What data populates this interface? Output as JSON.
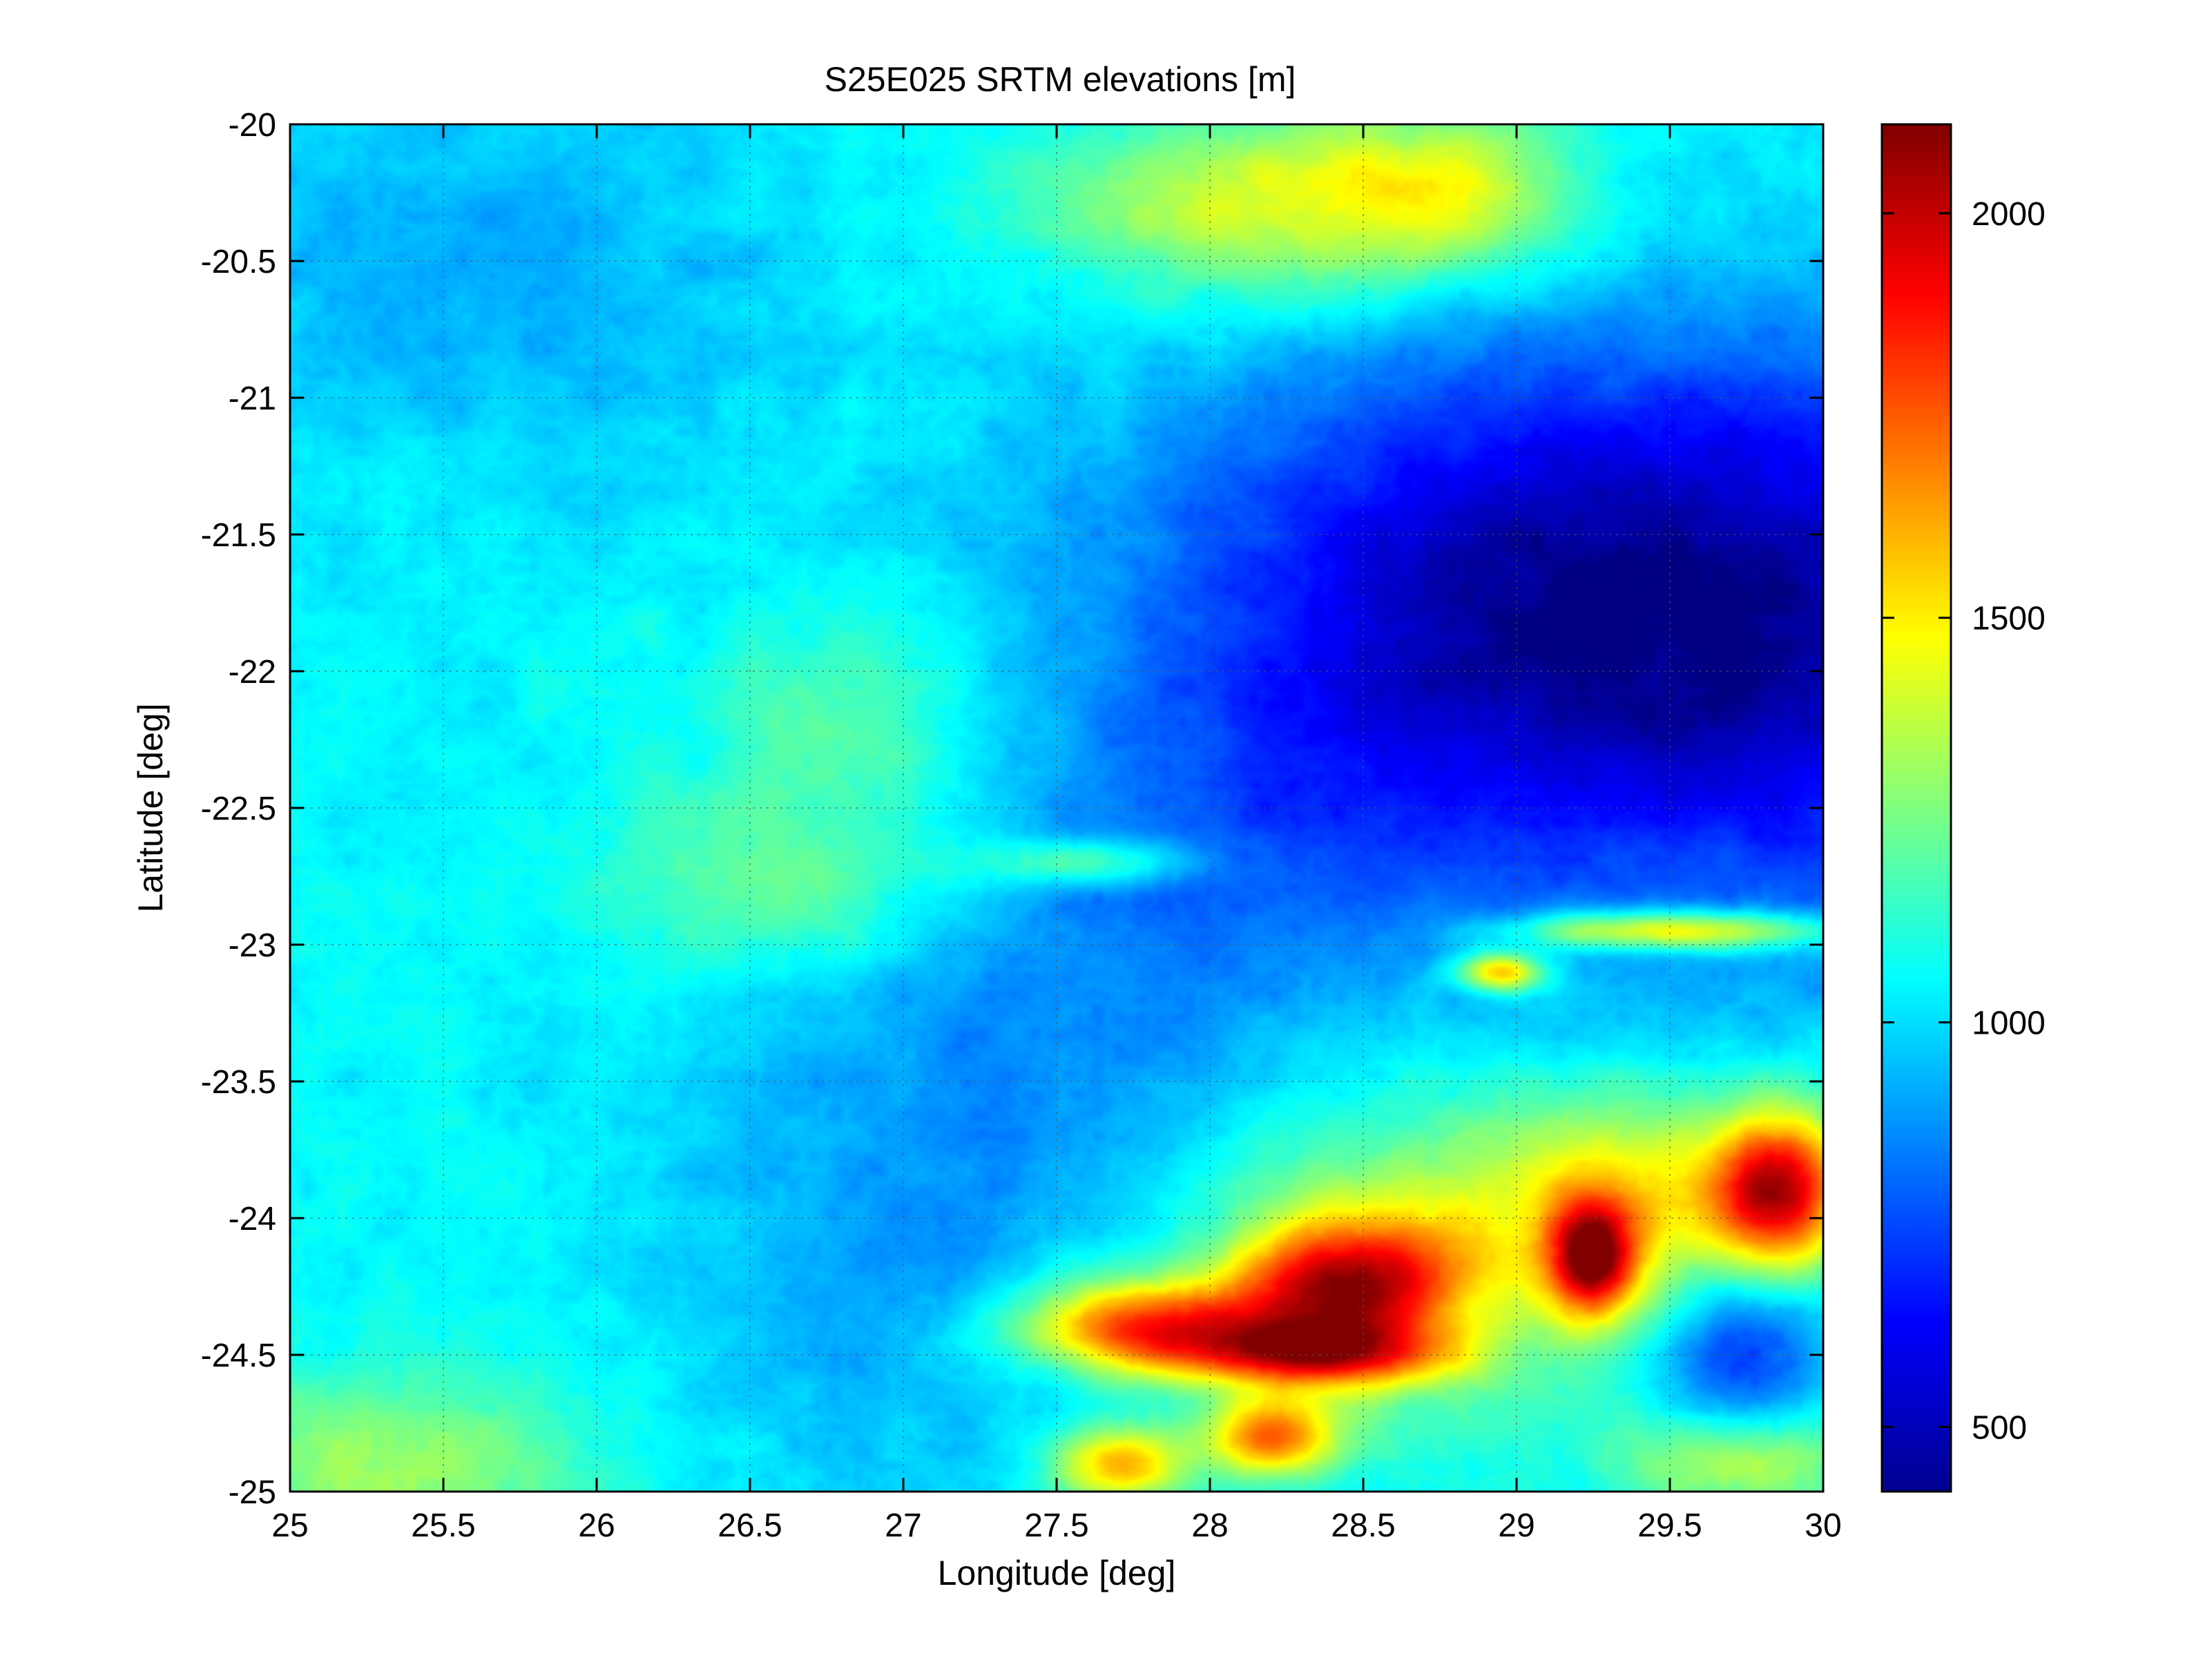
{
  "chart_data": {
    "type": "heatmap",
    "title": "S25E025 SRTM elevations [m]",
    "xlabel": "Longitude [deg]",
    "ylabel": "Latitude [deg]",
    "xlim": [
      25,
      30
    ],
    "ylim": [
      -25,
      -20
    ],
    "xticks": [
      25,
      25.5,
      26,
      26.5,
      27,
      27.5,
      28,
      28.5,
      29,
      29.5,
      30
    ],
    "xtick_labels": [
      "25",
      "25.5",
      "26",
      "26.5",
      "27",
      "27.5",
      "28",
      "28.5",
      "29",
      "29.5",
      "30"
    ],
    "yticks": [
      -20,
      -20.5,
      -21,
      -21.5,
      -22,
      -22.5,
      -23,
      -23.5,
      -24,
      -24.5,
      -25
    ],
    "ytick_labels": [
      "-20",
      "-20.5",
      "-21",
      "-21.5",
      "-22",
      "-22.5",
      "-23",
      "-23.5",
      "-24",
      "-24.5",
      "-25"
    ],
    "grid": true,
    "colormap": "jet",
    "colorbar": {
      "clim": [
        420,
        2110
      ],
      "ticks": [
        500,
        1000,
        1500,
        2000
      ],
      "tick_labels": [
        "500",
        "1000",
        "1500",
        "2000"
      ]
    },
    "field": {
      "base_elevation_m": 1060,
      "components": [
        {
          "lon": 29.9,
          "lat": -21.9,
          "sx": 1.3,
          "sy": 0.75,
          "dz": -520
        },
        {
          "lon": 28.9,
          "lat": -21.6,
          "sx": 0.8,
          "sy": 0.6,
          "dz": -200
        },
        {
          "lon": 28.2,
          "lat": -22.6,
          "sx": 0.5,
          "sy": 0.45,
          "dz": -120
        },
        {
          "lon": 27.1,
          "lat": -24.0,
          "sx": 0.65,
          "sy": 0.8,
          "dz": -150
        },
        {
          "lon": 27.6,
          "lat": -23.3,
          "sx": 0.5,
          "sy": 0.5,
          "dz": -90
        },
        {
          "lon": 25.6,
          "lat": -20.5,
          "sx": 0.7,
          "sy": 0.55,
          "dz": -130
        },
        {
          "lon": 28.2,
          "lat": -20.3,
          "sx": 0.5,
          "sy": 0.25,
          "dz": 380
        },
        {
          "lon": 28.8,
          "lat": -20.25,
          "sx": 0.3,
          "sy": 0.2,
          "dz": 300
        },
        {
          "lon": 26.6,
          "lat": -22.8,
          "sx": 0.4,
          "sy": 0.22,
          "dz": 220
        },
        {
          "lon": 26.8,
          "lat": -22.2,
          "sx": 0.35,
          "sy": 0.3,
          "dz": 180
        },
        {
          "lon": 25.3,
          "lat": -24.9,
          "sx": 0.5,
          "sy": 0.25,
          "dz": 260
        },
        {
          "lon": 27.8,
          "lat": -24.4,
          "sx": 0.3,
          "sy": 0.12,
          "dz": 780
        },
        {
          "lon": 28.45,
          "lat": -24.25,
          "sx": 0.25,
          "sy": 0.18,
          "dz": 850
        },
        {
          "lon": 28.35,
          "lat": -24.5,
          "sx": 0.3,
          "sy": 0.08,
          "dz": 600
        },
        {
          "lon": 29.25,
          "lat": -24.15,
          "sx": 0.1,
          "sy": 0.15,
          "dz": 820
        },
        {
          "lon": 29.4,
          "lat": -23.95,
          "sx": 0.4,
          "sy": 0.25,
          "dz": 420
        },
        {
          "lon": 29.85,
          "lat": -23.9,
          "sx": 0.15,
          "sy": 0.2,
          "dz": 900
        },
        {
          "lon": 29.75,
          "lat": -24.9,
          "sx": 0.25,
          "sy": 0.15,
          "dz": 550
        },
        {
          "lon": 27.7,
          "lat": -24.9,
          "sx": 0.15,
          "sy": 0.1,
          "dz": 600
        },
        {
          "lon": 28.2,
          "lat": -24.8,
          "sx": 0.15,
          "sy": 0.1,
          "dz": 650
        },
        {
          "lon": 29.5,
          "lat": -22.95,
          "sx": 0.35,
          "sy": 0.05,
          "dz": 620
        },
        {
          "lon": 28.95,
          "lat": -23.1,
          "sx": 0.1,
          "sy": 0.05,
          "dz": 650
        },
        {
          "lon": 27.6,
          "lat": -22.7,
          "sx": 0.25,
          "sy": 0.06,
          "dz": 320
        },
        {
          "lon": 28.6,
          "lat": -24.15,
          "sx": 0.6,
          "sy": 0.45,
          "dz": 230
        },
        {
          "lon": 29.75,
          "lat": -24.6,
          "sx": 0.2,
          "sy": 0.4,
          "dz": -380
        }
      ]
    }
  }
}
